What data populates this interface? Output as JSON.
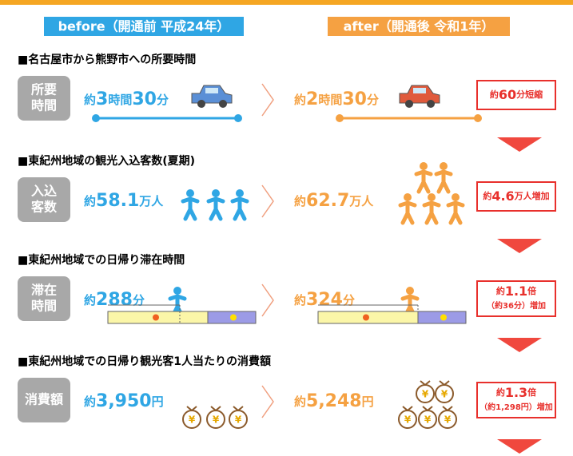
{
  "header": {
    "before": "before（開通前 平成24年）",
    "after": "after（開通後 令和1年）"
  },
  "bag_symbol": "¥",
  "sections": [
    {
      "title": "■名古屋市から熊野市への所要時間",
      "label": [
        "所要",
        "時間"
      ],
      "before": "約3時間30分",
      "after": "約2時間30分",
      "result": [
        "約60分短縮"
      ]
    },
    {
      "title": "■東紀州地域の観光入込客数(夏期)",
      "label": [
        "入込",
        "客数"
      ],
      "before": "約58.1万人",
      "after": "約62.7万人",
      "result": [
        "約4.6万人増加"
      ]
    },
    {
      "title": "■東紀州地域での日帰り滞在時間",
      "label": [
        "滞在",
        "時間"
      ],
      "before": "約288分",
      "after": "約324分",
      "result": [
        "約1.1倍",
        "（約36分）増加"
      ]
    },
    {
      "title": "■東紀州地域での日帰り観光客1人当たりの消費額",
      "label": [
        "消費額"
      ],
      "before": "約3,950円",
      "after": "約5,248円",
      "result": [
        "約1.3倍",
        "（約1,298円）増加"
      ]
    }
  ]
}
